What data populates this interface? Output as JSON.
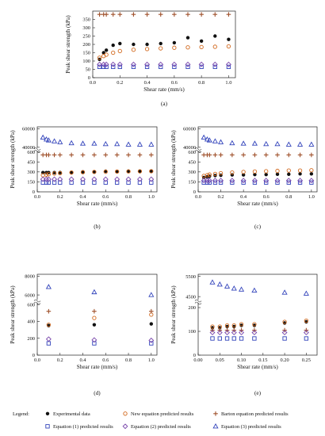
{
  "figure": {
    "legend_title": "Legend:",
    "legend_items": [
      {
        "label": "Experimental data",
        "marker": "filled-circle",
        "color": "#111111"
      },
      {
        "label": "New equation predicted results",
        "marker": "open-circle",
        "color": "#d2691e"
      },
      {
        "label": "Barton equation predicted results",
        "marker": "plus",
        "color": "#a0522d"
      },
      {
        "label": "Equation (1) predicted results",
        "marker": "open-square",
        "color": "#3344bb"
      },
      {
        "label": "Equation (2) predicted results",
        "marker": "open-diamond",
        "color": "#7744aa"
      },
      {
        "label": "Equation (3) predicted results",
        "marker": "open-triangle",
        "color": "#3344bb"
      }
    ]
  },
  "chart_data": [
    {
      "panel": "(a)",
      "type": "scatter",
      "xlabel": "Shear rate (mm/s)",
      "ylabel": "Peak shear strength (kPa)",
      "xlim": [
        0,
        1.05
      ],
      "x_ticks": [
        "0.0",
        "0.2",
        "0.4",
        "0.6",
        "0.8",
        "1.0"
      ],
      "y_segments": [
        {
          "lim": [
            0,
            400
          ],
          "ticks": [
            0,
            50,
            100,
            150,
            200,
            250,
            300,
            350
          ]
        }
      ],
      "x": [
        0.05,
        0.08,
        0.1,
        0.15,
        0.2,
        0.3,
        0.4,
        0.5,
        0.6,
        0.7,
        0.8,
        0.9,
        1.0
      ],
      "series": [
        {
          "name": "Experimental data",
          "values": [
            110,
            150,
            165,
            195,
            205,
            200,
            200,
            205,
            210,
            240,
            220,
            250,
            230
          ]
        },
        {
          "name": "New equation predicted results",
          "values": [
            120,
            130,
            138,
            150,
            160,
            168,
            172,
            176,
            180,
            182,
            184,
            186,
            188
          ]
        },
        {
          "name": "Barton equation predicted results",
          "values": [
            380,
            380,
            380,
            380,
            380,
            380,
            380,
            380,
            380,
            380,
            380,
            380,
            380
          ]
        },
        {
          "name": "Equation (1) predicted results",
          "values": [
            65,
            65,
            65,
            65,
            65,
            65,
            65,
            65,
            65,
            65,
            65,
            65,
            65
          ]
        },
        {
          "name": "Equation (2) predicted results",
          "values": [
            80,
            80,
            80,
            80,
            80,
            80,
            80,
            80,
            80,
            80,
            80,
            80,
            80
          ]
        }
      ]
    },
    {
      "panel": "(b)",
      "type": "scatter",
      "xlabel": "Shear rate (mm/s)",
      "ylabel": "Peak shear strength (kPa)",
      "xlim": [
        0,
        1.05
      ],
      "x_ticks": [
        "0.0",
        "0.2",
        "0.4",
        "0.6",
        "0.8",
        "1.0"
      ],
      "y_segments": [
        {
          "lim": [
            0,
            620
          ],
          "ticks": [
            0,
            150,
            300,
            450,
            600
          ]
        },
        {
          "lim": [
            39000,
            62000
          ],
          "ticks": [
            40000,
            60000
          ]
        }
      ],
      "x": [
        0.05,
        0.08,
        0.1,
        0.15,
        0.2,
        0.3,
        0.4,
        0.5,
        0.6,
        0.7,
        0.8,
        0.9,
        1.0
      ],
      "series": [
        {
          "name": "Experimental data",
          "values": [
            290,
            290,
            290,
            290,
            290,
            290,
            300,
            300,
            310,
            300,
            310,
            310,
            310
          ]
        },
        {
          "name": "New equation predicted results",
          "values": [
            250,
            260,
            265,
            275,
            280,
            290,
            295,
            300,
            302,
            305,
            307,
            308,
            310
          ]
        },
        {
          "name": "Barton equation predicted results",
          "values": [
            555,
            555,
            555,
            555,
            555,
            555,
            555,
            555,
            555,
            555,
            555,
            555,
            555
          ]
        },
        {
          "name": "Equation (1) predicted results",
          "values": [
            140,
            140,
            140,
            140,
            140,
            140,
            140,
            140,
            140,
            140,
            140,
            140,
            140
          ]
        },
        {
          "name": "Equation (2) predicted results",
          "values": [
            190,
            190,
            190,
            190,
            190,
            190,
            190,
            190,
            190,
            190,
            190,
            190,
            190
          ]
        },
        {
          "name": "Equation (3) predicted results",
          "values": [
            50500,
            48500,
            47500,
            46500,
            45500,
            44500,
            44000,
            44000,
            43500,
            43500,
            43000,
            43000,
            43000
          ]
        }
      ]
    },
    {
      "panel": "(c)",
      "type": "scatter",
      "xlabel": "Shear rate (mm/s)",
      "ylabel": "Peak shear strength (kPa)",
      "xlim": [
        0,
        1.05
      ],
      "x_ticks": [
        "0.0",
        "0.2",
        "0.4",
        "0.6",
        "0.8",
        "1.0"
      ],
      "y_segments": [
        {
          "lim": [
            0,
            620
          ],
          "ticks": [
            0,
            150,
            300,
            450,
            600
          ]
        },
        {
          "lim": [
            39000,
            62000
          ],
          "ticks": [
            40000,
            60000
          ]
        }
      ],
      "x": [
        0.05,
        0.08,
        0.1,
        0.15,
        0.2,
        0.3,
        0.4,
        0.5,
        0.6,
        0.7,
        0.8,
        0.9,
        1.0
      ],
      "series": [
        {
          "name": "Experimental data",
          "values": [
            215,
            225,
            235,
            245,
            250,
            255,
            255,
            260,
            260,
            265,
            265,
            270,
            270
          ]
        },
        {
          "name": "New equation predicted results",
          "values": [
            240,
            250,
            260,
            270,
            280,
            290,
            300,
            305,
            310,
            315,
            320,
            320,
            325
          ]
        },
        {
          "name": "Barton equation predicted results",
          "values": [
            555,
            555,
            555,
            555,
            555,
            555,
            555,
            555,
            555,
            555,
            555,
            555,
            555
          ]
        },
        {
          "name": "Equation (1) predicted results",
          "values": [
            140,
            140,
            140,
            140,
            140,
            140,
            140,
            140,
            140,
            140,
            140,
            140,
            140
          ]
        },
        {
          "name": "Equation (2) predicted results",
          "values": [
            170,
            170,
            170,
            170,
            170,
            170,
            170,
            170,
            170,
            170,
            170,
            170,
            170
          ]
        },
        {
          "name": "Equation (3) predicted results",
          "values": [
            50500,
            48500,
            47500,
            46500,
            45500,
            44500,
            44000,
            44000,
            43500,
            43500,
            43000,
            43000,
            43000
          ]
        }
      ]
    },
    {
      "panel": "(d)",
      "type": "scatter",
      "xlabel": "Shear rate (mm/s)",
      "ylabel": "Peak shear strength (kPa)",
      "xlim": [
        0,
        1.05
      ],
      "x_ticks": [
        "0.0",
        "0.2",
        "0.4",
        "0.6",
        "0.8",
        "1.0"
      ],
      "y_segments": [
        {
          "lim": [
            0,
            620
          ],
          "ticks": [
            0,
            200,
            400,
            600
          ]
        },
        {
          "lim": [
            5500,
            8200
          ],
          "ticks": [
            6000,
            8000
          ]
        }
      ],
      "x": [
        0.1,
        0.5,
        1.0
      ],
      "series": [
        {
          "name": "Experimental data",
          "values": [
            350,
            360,
            370
          ]
        },
        {
          "name": "New equation predicted results",
          "values": [
            360,
            440,
            480
          ]
        },
        {
          "name": "Barton equation predicted results",
          "values": [
            520,
            520,
            520
          ]
        },
        {
          "name": "Equation (1) predicted results",
          "values": [
            140,
            140,
            140
          ]
        },
        {
          "name": "Equation (2) predicted results",
          "values": [
            190,
            180,
            175
          ]
        },
        {
          "name": "Equation (3) predicted results",
          "values": [
            6850,
            6300,
            6000
          ]
        }
      ]
    },
    {
      "panel": "(e)",
      "type": "scatter",
      "xlabel": "Shear rate (mm/s)",
      "ylabel": "Peak shear strength (kPa)",
      "xlim": [
        0,
        0.275
      ],
      "x_ticks": [
        "0.00",
        "0.05",
        "0.10",
        "0.15",
        "0.20",
        "0.25"
      ],
      "y_segments": [
        {
          "lim": [
            0,
            220
          ],
          "ticks": [
            0,
            100,
            200
          ]
        },
        {
          "lim": [
            4350,
            5600
          ],
          "ticks": [
            4500,
            5500
          ]
        }
      ],
      "x": [
        0.033,
        0.05,
        0.067,
        0.083,
        0.1,
        0.13,
        0.2,
        0.25
      ],
      "series": [
        {
          "name": "Experimental data",
          "values": [
            115,
            115,
            120,
            120,
            125,
            125,
            135,
            140
          ]
        },
        {
          "name": "New equation predicted results",
          "values": [
            120,
            120,
            125,
            125,
            130,
            130,
            140,
            145
          ]
        },
        {
          "name": "Barton equation predicted results",
          "values": [
            105,
            105,
            105,
            105,
            105,
            105,
            105,
            105
          ]
        },
        {
          "name": "Equation (1) predicted results",
          "values": [
            70,
            70,
            70,
            70,
            70,
            70,
            70,
            70
          ]
        },
        {
          "name": "Equation (2) predicted results",
          "values": [
            95,
            95,
            95,
            95,
            95,
            95,
            95,
            95
          ]
        },
        {
          "name": "Equation (3) predicted results",
          "values": [
            5200,
            5100,
            5000,
            4900,
            4850,
            4800,
            4700,
            4650
          ]
        }
      ]
    }
  ]
}
